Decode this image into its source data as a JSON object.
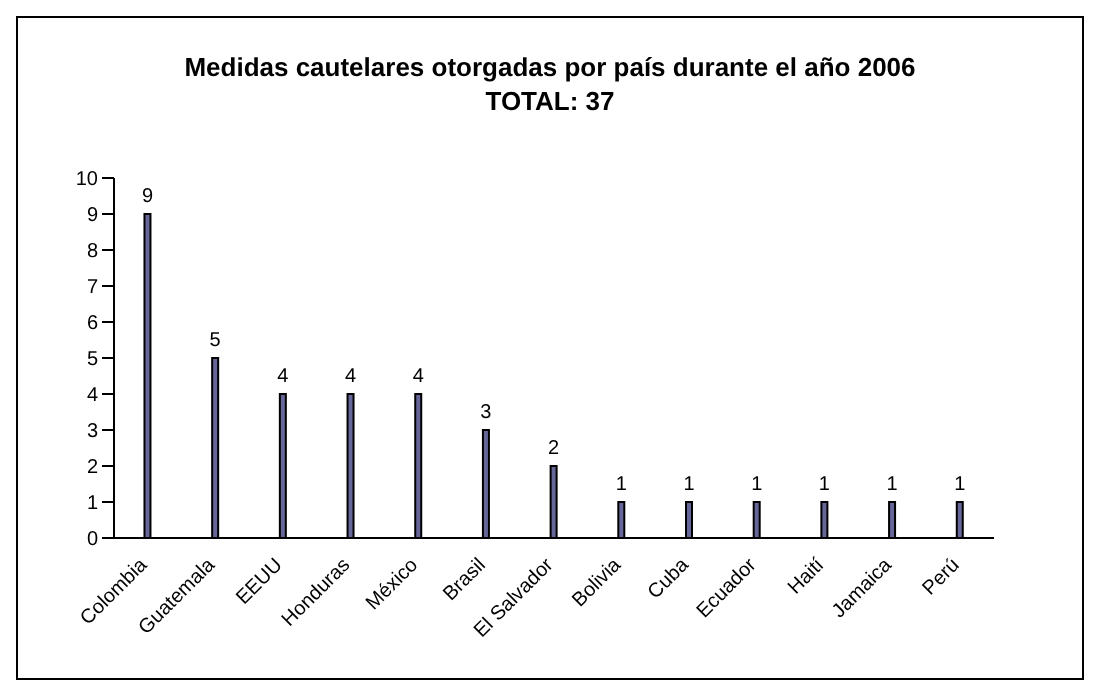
{
  "chart_data": {
    "type": "bar",
    "title": "Medidas cautelares otorgadas por país durante el año 2006",
    "subtitle": "TOTAL: 37",
    "categories": [
      "Colombia",
      "Guatemala",
      "EEUU",
      "Honduras",
      "México",
      "Brasil",
      "El Salvador",
      "Bolivia",
      "Cuba",
      "Ecuador",
      "Haití",
      "Jamaica",
      "Perú"
    ],
    "values": [
      9,
      5,
      4,
      4,
      4,
      3,
      2,
      1,
      1,
      1,
      1,
      1,
      1
    ],
    "color": "#666699",
    "ylim": [
      0,
      10
    ],
    "yticks": [
      0,
      1,
      2,
      3,
      4,
      5,
      6,
      7,
      8,
      9,
      10
    ],
    "grid": false,
    "data_labels": true
  }
}
